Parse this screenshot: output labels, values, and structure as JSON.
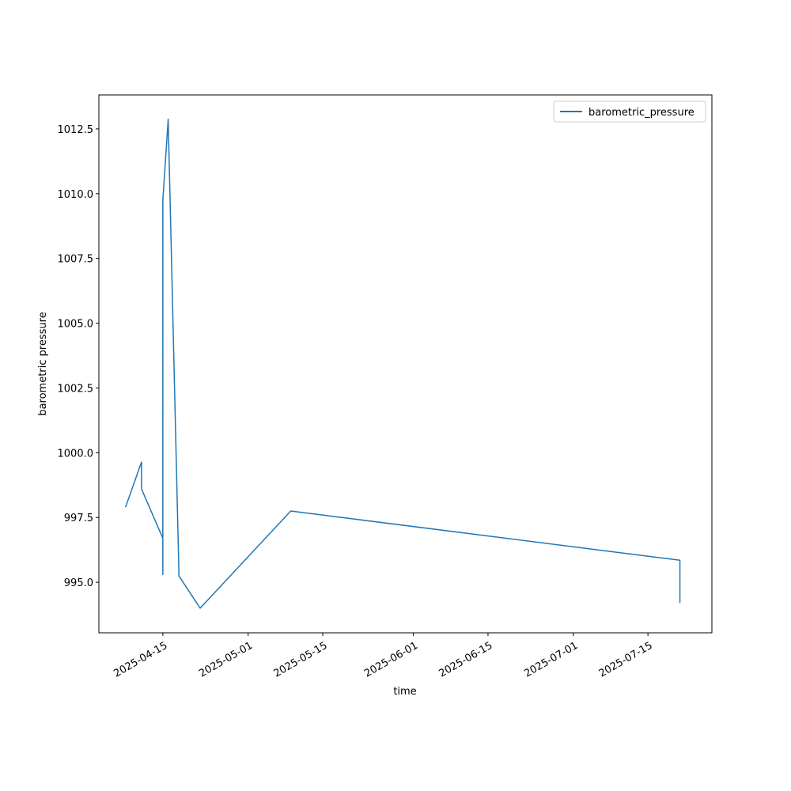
{
  "chart_data": {
    "type": "line",
    "xlabel": "time",
    "ylabel": "barometric pressure",
    "x": [
      "2025-04-08",
      "2025-04-11",
      "2025-04-11",
      "2025-04-15",
      "2025-04-15",
      "2025-04-15",
      "2025-04-16",
      "2025-04-18",
      "2025-04-18",
      "2025-04-22",
      "2025-05-09",
      "2025-07-21",
      "2025-07-21"
    ],
    "series": [
      {
        "name": "barometric_pressure",
        "color": "#1f77b4",
        "values": [
          997.9,
          999.64,
          998.6,
          996.7,
          995.3,
          1009.75,
          1012.87,
          995.5,
          995.25,
          994.0,
          997.75,
          995.85,
          994.2
        ]
      }
    ],
    "xlim": [
      "2025-04-03",
      "2025-07-27"
    ],
    "xticks": [
      "2025-04-15",
      "2025-05-01",
      "2025-05-15",
      "2025-06-01",
      "2025-06-15",
      "2025-07-01",
      "2025-07-15"
    ],
    "ylim": [
      993.05,
      1013.81
    ],
    "yticks": [
      {
        "value": 995,
        "label": "995.0"
      },
      997.5,
      {
        "value": 1000,
        "label": "1000.0"
      },
      1002.5,
      {
        "value": 1005,
        "label": "1005.0"
      },
      1007.5,
      {
        "value": 1010,
        "label": "1010.0"
      },
      1012.5
    ],
    "grid": false,
    "legend": "upper right"
  }
}
